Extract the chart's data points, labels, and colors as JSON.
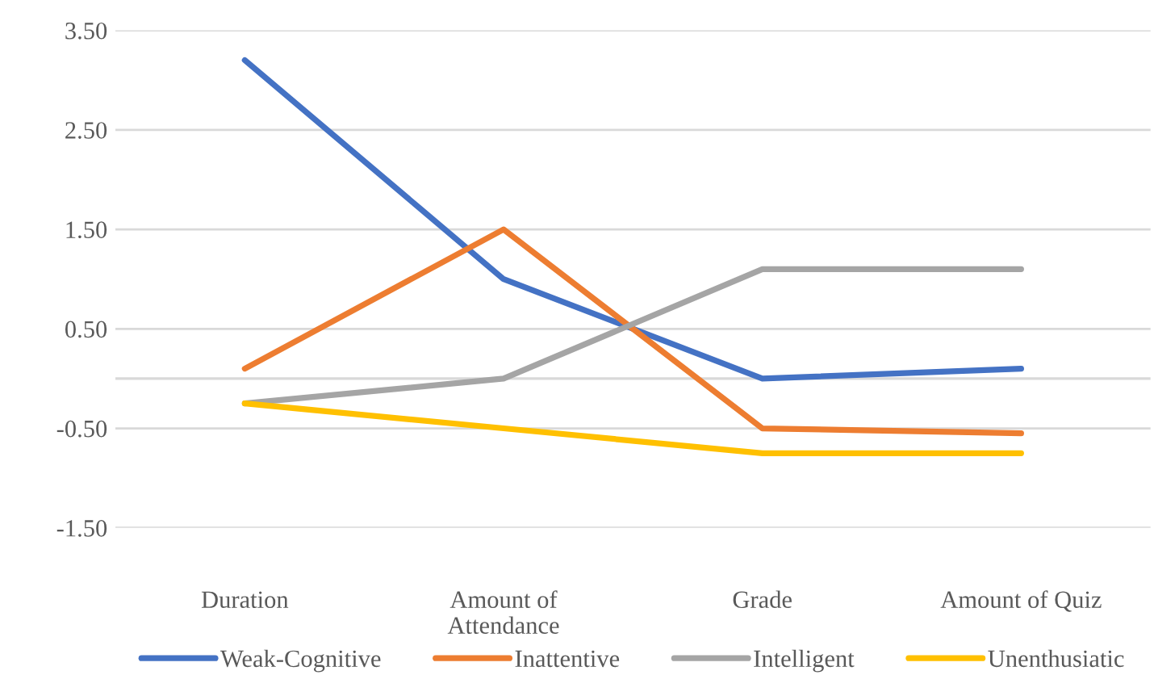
{
  "chart_data": {
    "type": "line",
    "categories": [
      "Duration",
      "Amount of Attendance",
      "Grade",
      "Amount of Quiz"
    ],
    "series": [
      {
        "name": "Weak-Cognitive",
        "color": "#4472c4",
        "values": [
          3.2,
          1.0,
          0.0,
          0.1
        ]
      },
      {
        "name": "Inattentive",
        "color": "#ed7d31",
        "values": [
          0.1,
          1.5,
          -0.5,
          -0.55
        ]
      },
      {
        "name": "Intelligent",
        "color": "#a5a5a5",
        "values": [
          -0.25,
          0.0,
          1.1,
          1.1
        ]
      },
      {
        "name": "Unenthusiatic",
        "color": "#ffc000",
        "values": [
          -0.25,
          -0.5,
          -0.75,
          -0.75
        ]
      }
    ],
    "ylim": [
      -1.5,
      3.5
    ],
    "yticks": [
      {
        "value": -1.5,
        "label": "-1.50"
      },
      {
        "value": -0.5,
        "label": "-0.50"
      },
      {
        "value": 0.5,
        "label": "0.50"
      },
      {
        "value": 1.5,
        "label": "1.50"
      },
      {
        "value": 2.5,
        "label": "2.50"
      },
      {
        "value": 3.5,
        "label": "3.50"
      }
    ],
    "ref_lines": [
      {
        "axis": "y",
        "value": 0,
        "color": "#d9d9d9"
      }
    ],
    "grid": "y",
    "legend": "bottom",
    "marker": "none",
    "line_style": "solid"
  }
}
